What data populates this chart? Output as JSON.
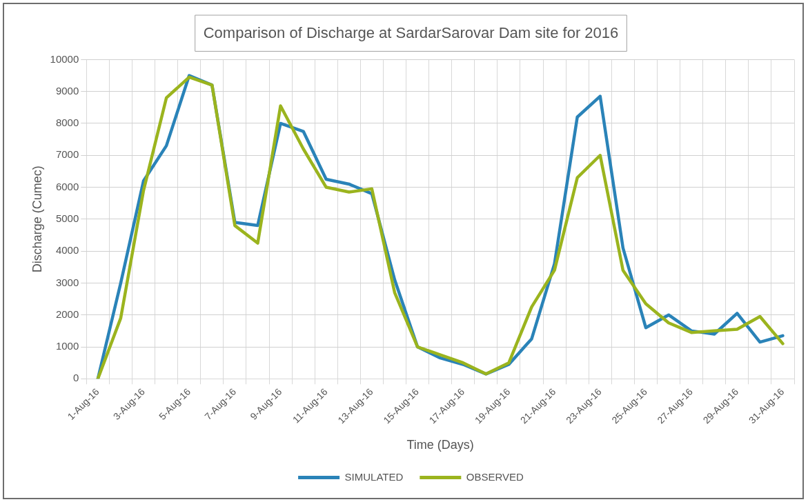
{
  "chart_data": {
    "type": "line",
    "title": "Comparison of Discharge at SardarSarovar Dam site for 2016",
    "xlabel": "Time (Days)",
    "ylabel": "Discharge (Cumec)",
    "categories": [
      "1-Aug-16",
      null,
      "3-Aug-16",
      null,
      "5-Aug-16",
      null,
      "7-Aug-16",
      null,
      "9-Aug-16",
      null,
      "11-Aug-16",
      null,
      "13-Aug-16",
      null,
      "15-Aug-16",
      null,
      "17-Aug-16",
      null,
      "19-Aug-16",
      null,
      "21-Aug-16",
      null,
      "23-Aug-16",
      null,
      "25-Aug-16",
      null,
      "27-Aug-16",
      null,
      "29-Aug-16",
      null,
      "31-Aug-16"
    ],
    "series": [
      {
        "name": "SIMULATED",
        "color": "#2a83b8",
        "values": [
          0,
          3000,
          6200,
          7300,
          9500,
          9200,
          4900,
          4800,
          8000,
          7750,
          6250,
          6100,
          5800,
          3100,
          1000,
          650,
          450,
          150,
          450,
          1250,
          3600,
          8200,
          8850,
          4100,
          1600,
          2000,
          1500,
          1400,
          2050,
          1150,
          1350
        ]
      },
      {
        "name": "OBSERVED",
        "color": "#9bb41e",
        "values": [
          0,
          1900,
          5900,
          8800,
          9450,
          9200,
          4800,
          4250,
          8550,
          7200,
          6000,
          5850,
          5950,
          2700,
          1000,
          750,
          500,
          150,
          500,
          2250,
          3400,
          6300,
          7000,
          3400,
          2350,
          1750,
          1450,
          1500,
          1550,
          1950,
          1100
        ]
      }
    ],
    "ylim": [
      0,
      10000
    ],
    "yticks": [
      0,
      1000,
      2000,
      3000,
      4000,
      5000,
      6000,
      7000,
      8000,
      9000,
      10000
    ],
    "grid": true,
    "legend": "bottom",
    "marker": "none",
    "line_style": "solid"
  }
}
